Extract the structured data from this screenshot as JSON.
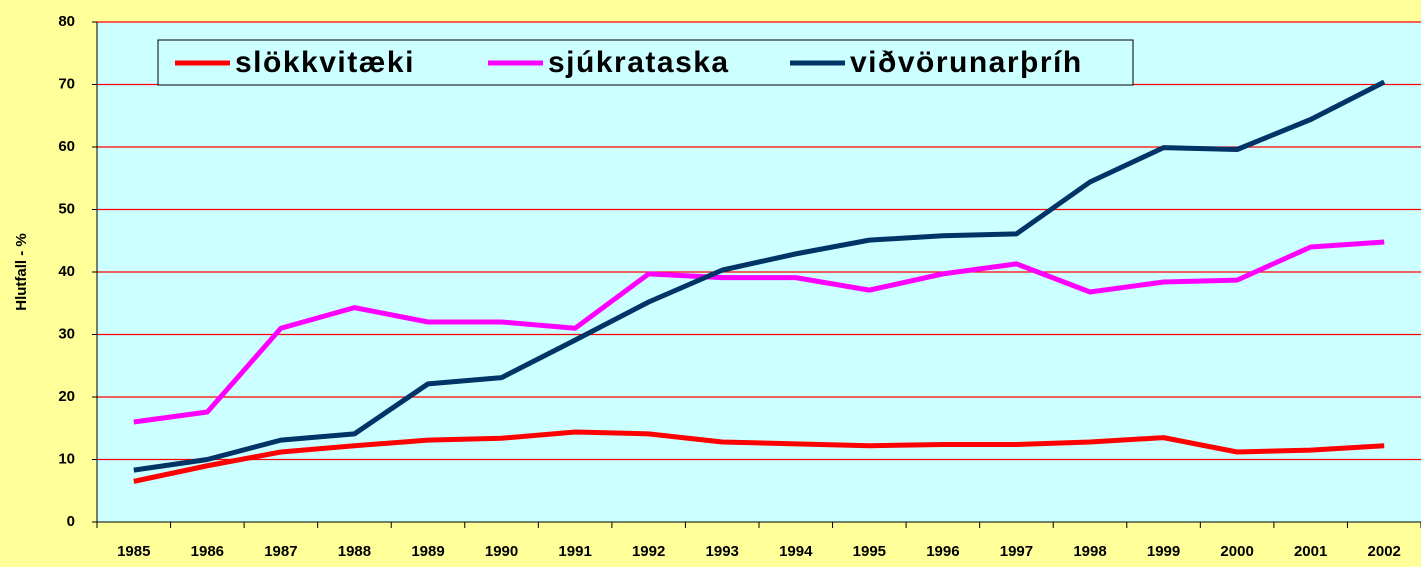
{
  "chart_data": {
    "type": "line",
    "y_label": "Hlutfall - %",
    "categories": [
      "1985",
      "1986",
      "1987",
      "1988",
      "1989",
      "1990",
      "1991",
      "1992",
      "1993",
      "1994",
      "1995",
      "1996",
      "1997",
      "1998",
      "1999",
      "2000",
      "2001",
      "2002"
    ],
    "series": [
      {
        "name": "slökkvitæki",
        "color": "#ff0000",
        "values": [
          6.5,
          9,
          11.2,
          12.2,
          13.1,
          13.4,
          14.4,
          14.1,
          12.8,
          12.5,
          12.2,
          12.4,
          12.4,
          12.8,
          13.5,
          11.2,
          11.5,
          12.2
        ]
      },
      {
        "name": "sjúkrataska",
        "color": "#ff00ff",
        "values": [
          16,
          17.6,
          31,
          34.3,
          32,
          32,
          31,
          39.7,
          39.1,
          39.1,
          37.1,
          39.7,
          41.3,
          36.8,
          38.4,
          38.7,
          44,
          44.8
        ]
      },
      {
        "name": "viðvörunarþríh",
        "color": "#003366",
        "values": [
          8.3,
          10,
          13.1,
          14.1,
          22.1,
          23.1,
          29.1,
          35.2,
          40.3,
          42.9,
          45.1,
          45.8,
          46.1,
          54.4,
          59.9,
          59.6,
          64.4,
          70.4
        ]
      }
    ],
    "ylim": [
      0,
      80
    ],
    "yticks": [
      0,
      10,
      20,
      30,
      40,
      50,
      60,
      70,
      80
    ],
    "grid": true,
    "grid_color": "#ff0000",
    "plot_background": "#ccffff",
    "legend": "top-left"
  }
}
